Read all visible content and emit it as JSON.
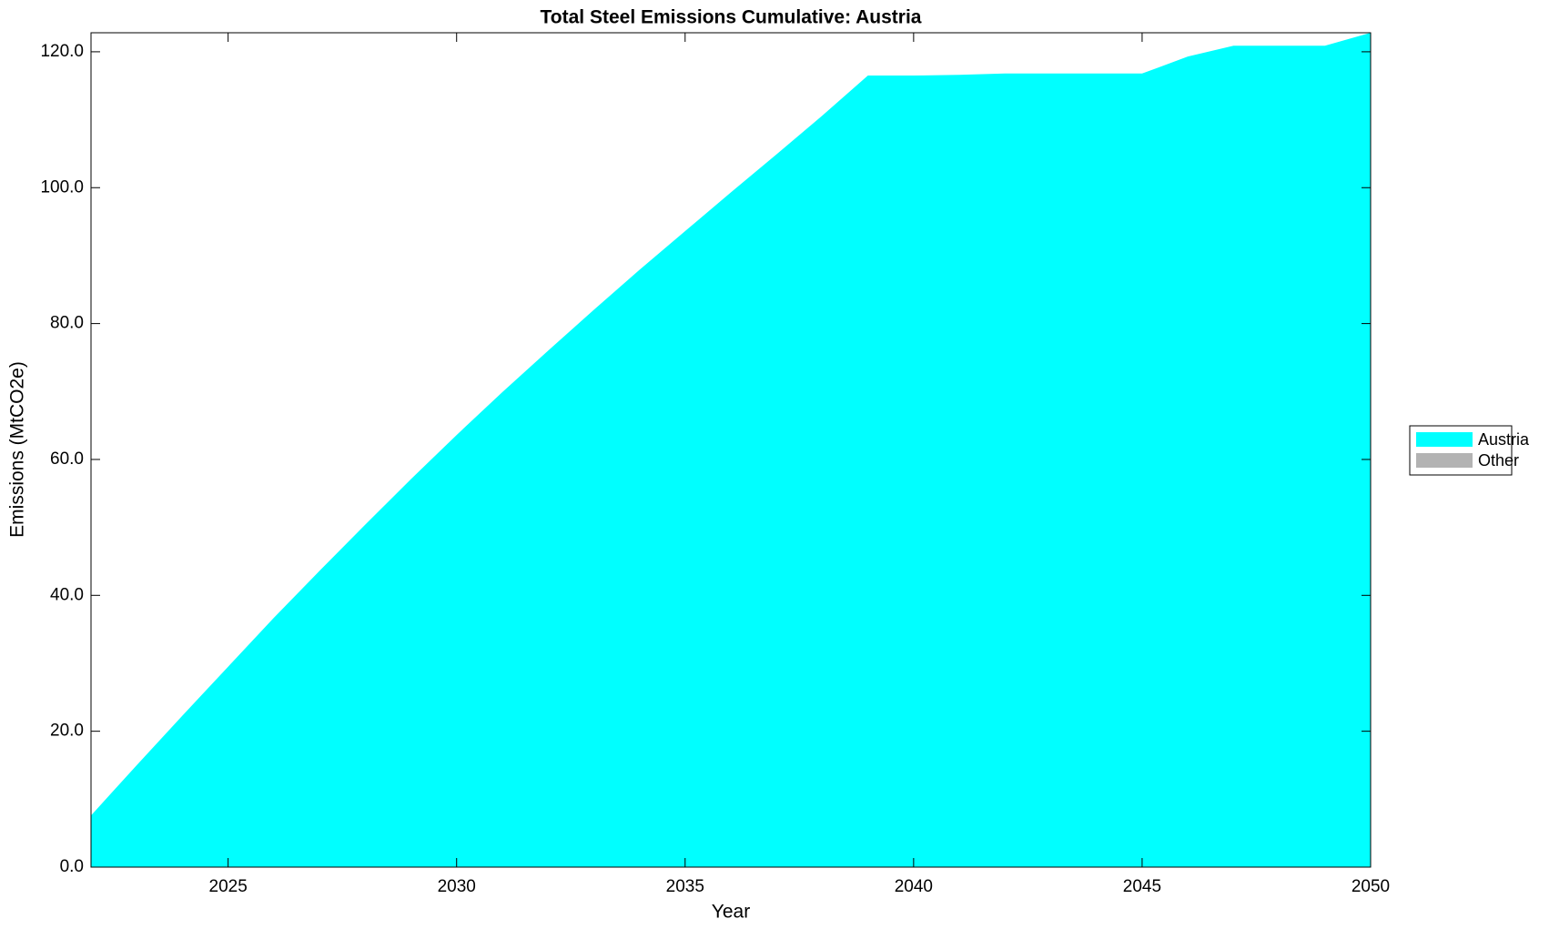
{
  "chart_data": {
    "type": "area",
    "stacked": true,
    "title": "Total Steel Emissions Cumulative: Austria",
    "x_label": "Year",
    "y_label": "Emissions (MtCO2e)",
    "x": [
      2022,
      2023,
      2024,
      2025,
      2026,
      2027,
      2028,
      2029,
      2030,
      2031,
      2032,
      2033,
      2034,
      2035,
      2036,
      2037,
      2038,
      2039,
      2040,
      2041,
      2042,
      2043,
      2044,
      2045,
      2046,
      2047,
      2048,
      2049,
      2050
    ],
    "series": [
      {
        "name": "Austria",
        "color": "#00ffff",
        "values": [
          7.6,
          15.0,
          22.3,
          29.5,
          36.7,
          43.6,
          50.4,
          57.1,
          63.6,
          69.9,
          76.0,
          82.0,
          87.9,
          93.6,
          99.3,
          104.9,
          110.6,
          116.5,
          116.5,
          116.6,
          116.8,
          116.8,
          116.8,
          116.8,
          119.3,
          120.9,
          120.9,
          120.9,
          122.8
        ]
      },
      {
        "name": "Other",
        "color": "#b3b3b3",
        "values": [
          0,
          0,
          0,
          0,
          0,
          0,
          0,
          0,
          0,
          0,
          0,
          0,
          0,
          0,
          0,
          0,
          0,
          0,
          0,
          0,
          0,
          0,
          0,
          0,
          0,
          0,
          0,
          0,
          0
        ]
      }
    ],
    "xlim": [
      2022,
      2050
    ],
    "xticks": [
      2025,
      2030,
      2035,
      2040,
      2045,
      2050
    ],
    "ylim": [
      0,
      122.8
    ],
    "yticks": [
      {
        "value": 0,
        "label": "0.0"
      },
      {
        "value": 20,
        "label": "20.0"
      },
      {
        "value": 40,
        "label": "40.0"
      },
      {
        "value": 60,
        "label": "60.0"
      },
      {
        "value": 80,
        "label": "80.0"
      },
      {
        "value": 100,
        "label": "100.0"
      },
      {
        "value": 120,
        "label": "120.0"
      }
    ],
    "legend": "outside-right"
  }
}
